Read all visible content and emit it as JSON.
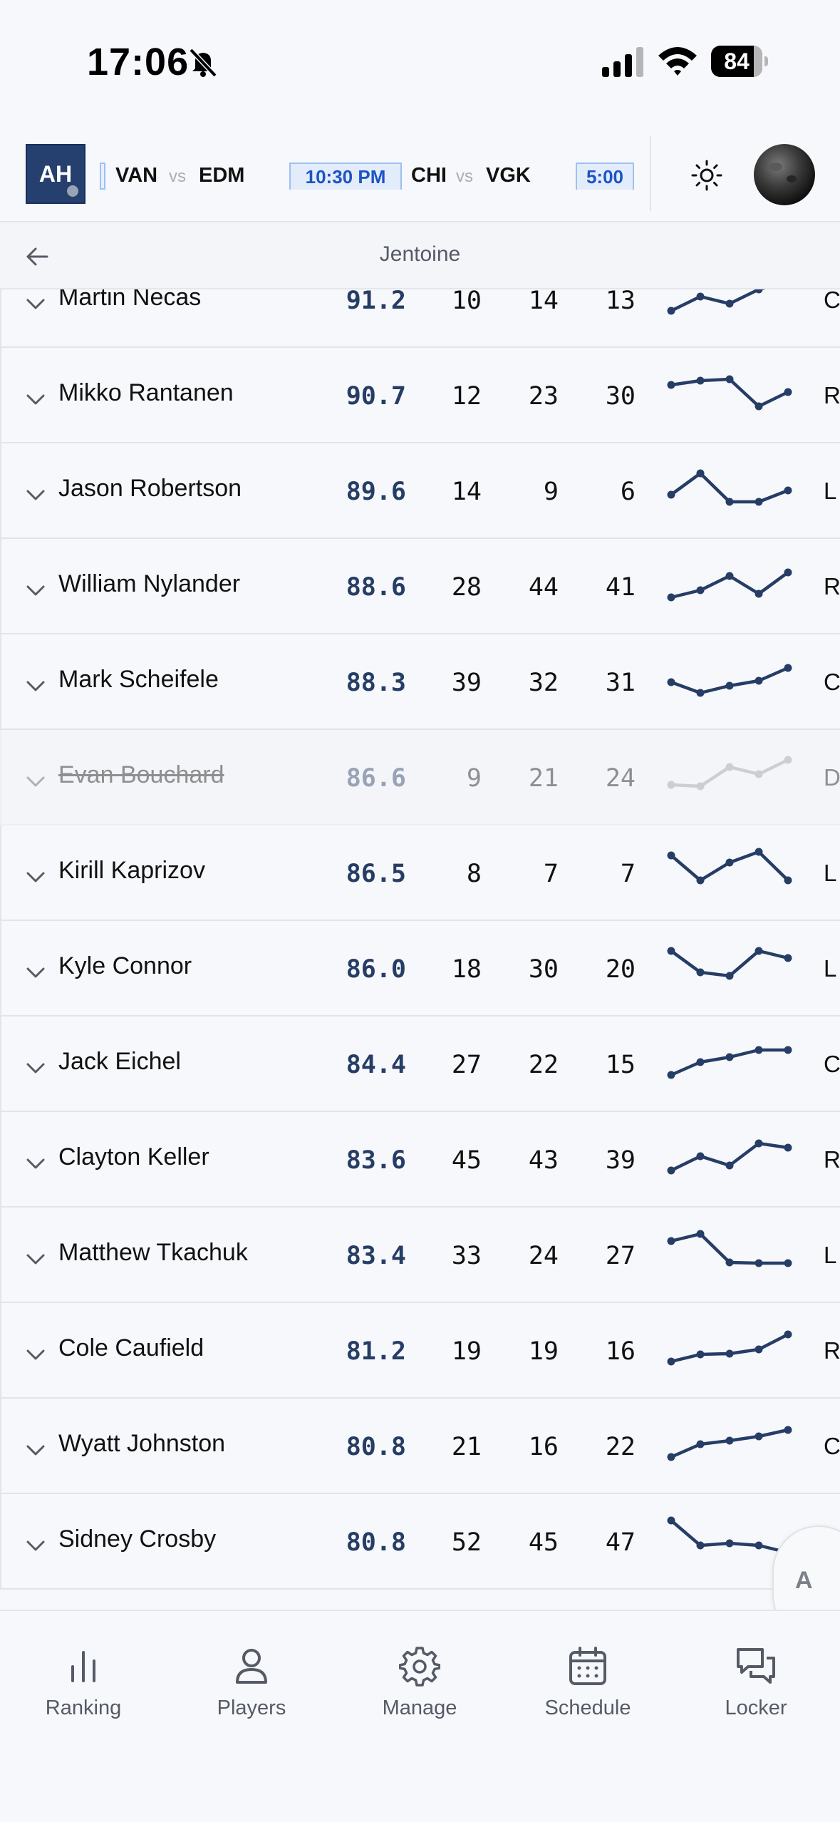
{
  "status_bar": {
    "time": "17:06",
    "battery": "84"
  },
  "header": {
    "logo": "AH",
    "games": [
      {
        "away": "VAN",
        "vs": "vs",
        "home": "EDM"
      },
      {
        "time": "10:30 PM",
        "away": "CHI",
        "vs": "vs",
        "home": "VGK"
      },
      {
        "time": "5:00"
      }
    ]
  },
  "subheader": {
    "title": "Jentoine"
  },
  "players": [
    {
      "name": "Martin Necas",
      "score": "91.2",
      "a": "10",
      "b": "14",
      "c": "13",
      "pos": "C",
      "trend": [
        2,
        4,
        3,
        5,
        6
      ],
      "faded": false
    },
    {
      "name": "Mikko Rantanen",
      "score": "90.7",
      "a": "12",
      "b": "23",
      "c": "30",
      "pos": "R",
      "trend": [
        5,
        5.6,
        5.8,
        2,
        4
      ],
      "faded": false
    },
    {
      "name": "Jason Robertson",
      "score": "89.6",
      "a": "14",
      "b": "9",
      "c": "6",
      "pos": "L",
      "trend": [
        3,
        6,
        2,
        2,
        3.6
      ],
      "faded": false
    },
    {
      "name": "William Nylander",
      "score": "88.6",
      "a": "28",
      "b": "44",
      "c": "41",
      "pos": "R",
      "trend": [
        2,
        3,
        5,
        2.5,
        5.5
      ],
      "faded": false
    },
    {
      "name": "Mark Scheifele",
      "score": "88.3",
      "a": "39",
      "b": "32",
      "c": "31",
      "pos": "C",
      "trend": [
        3.5,
        2,
        3,
        3.7,
        5.5
      ],
      "faded": false
    },
    {
      "name": "Evan Bouchard",
      "score": "86.6",
      "a": "9",
      "b": "21",
      "c": "24",
      "pos": "D",
      "trend": [
        2.5,
        2.3,
        5,
        4,
        6
      ],
      "faded": true
    },
    {
      "name": "Kirill Kaprizov",
      "score": "86.5",
      "a": "8",
      "b": "7",
      "c": "7",
      "pos": "L",
      "trend": [
        6,
        2.5,
        5,
        6.5,
        2.5
      ],
      "faded": false
    },
    {
      "name": "Kyle Connor",
      "score": "86.0",
      "a": "18",
      "b": "30",
      "c": "20",
      "pos": "L",
      "trend": [
        6,
        3,
        2.5,
        6,
        5
      ],
      "faded": false
    },
    {
      "name": "Jack Eichel",
      "score": "84.4",
      "a": "27",
      "b": "22",
      "c": "15",
      "pos": "C",
      "trend": [
        2,
        3.8,
        4.5,
        5.5,
        5.5
      ],
      "faded": false
    },
    {
      "name": "Clayton Keller",
      "score": "83.6",
      "a": "45",
      "b": "43",
      "c": "39",
      "pos": "R",
      "trend": [
        2,
        4,
        2.7,
        5.8,
        5.2
      ],
      "faded": false
    },
    {
      "name": "Matthew Tkachuk",
      "score": "83.4",
      "a": "33",
      "b": "24",
      "c": "27",
      "pos": "L",
      "trend": [
        5.5,
        6.5,
        2.5,
        2.4,
        2.4
      ],
      "faded": false
    },
    {
      "name": "Cole Caufield",
      "score": "81.2",
      "a": "19",
      "b": "19",
      "c": "16",
      "pos": "R",
      "trend": [
        2,
        3,
        3.1,
        3.7,
        5.8
      ],
      "faded": false
    },
    {
      "name": "Wyatt Johnston",
      "score": "80.8",
      "a": "21",
      "b": "16",
      "c": "22",
      "pos": "C",
      "trend": [
        2,
        3.8,
        4.3,
        4.9,
        5.8
      ],
      "faded": false
    },
    {
      "name": "Sidney Crosby",
      "score": "80.8",
      "a": "52",
      "b": "45",
      "c": "47",
      "pos": "",
      "trend": [
        6.5,
        3,
        3.3,
        3,
        2
      ],
      "faded": false
    }
  ],
  "fab": {
    "label": "A"
  },
  "nav": [
    {
      "label": "Ranking",
      "icon": "bar-chart-icon"
    },
    {
      "label": "Players",
      "icon": "user-icon"
    },
    {
      "label": "Manage",
      "icon": "gear-icon"
    },
    {
      "label": "Schedule",
      "icon": "calendar-icon"
    },
    {
      "label": "Locker",
      "icon": "chat-icon"
    }
  ],
  "colors": {
    "accent": "#263d66",
    "chip_bg": "#e3ecfb",
    "chip_text": "#1d53c5",
    "line": "#263d66",
    "faded_line": "#9a9da3"
  }
}
